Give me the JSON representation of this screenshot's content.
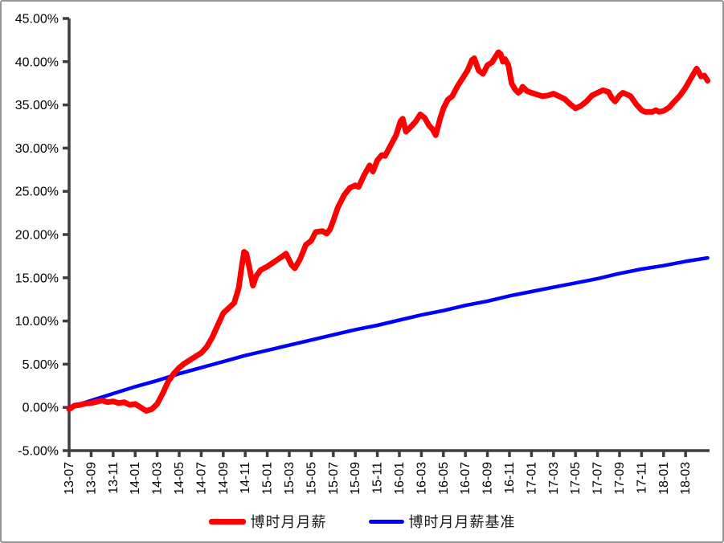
{
  "chart_data": {
    "type": "line",
    "title": "",
    "xlabel": "",
    "ylabel": "",
    "grid": false,
    "legend_position": "bottom-center",
    "x_range_months": [
      0,
      58
    ],
    "ylim": [
      -5,
      45
    ],
    "y_tick_labels": [
      "45.00%",
      "40.00%",
      "35.00%",
      "30.00%",
      "25.00%",
      "20.00%",
      "15.00%",
      "10.00%",
      "5.00%",
      "0.00%",
      "-5.00%"
    ],
    "y_tick_values": [
      45,
      40,
      35,
      30,
      25,
      20,
      15,
      10,
      5,
      0,
      -5
    ],
    "x_tick_labels": [
      "13-07",
      "13-09",
      "13-11",
      "14-01",
      "14-03",
      "14-05",
      "14-07",
      "14-09",
      "14-11",
      "15-01",
      "15-03",
      "15-05",
      "15-07",
      "15-09",
      "15-11",
      "16-01",
      "16-03",
      "16-05",
      "16-07",
      "16-09",
      "16-11",
      "17-01",
      "17-03",
      "17-05",
      "17-07",
      "17-09",
      "17-11",
      "18-01",
      "18-03"
    ],
    "x_tick_months": [
      0,
      2,
      4,
      6,
      8,
      10,
      12,
      14,
      16,
      18,
      20,
      22,
      24,
      26,
      28,
      30,
      32,
      34,
      36,
      38,
      40,
      42,
      44,
      46,
      48,
      50,
      52,
      54,
      56
    ],
    "axis_color": "#3f3f3f",
    "label_color": "#000000",
    "series": [
      {
        "name": "博时月月薪",
        "color": "#ff0000",
        "stroke_width": 7,
        "points": [
          [
            0,
            -0.2
          ],
          [
            0.5,
            0.2
          ],
          [
            1,
            0.3
          ],
          [
            1.5,
            0.45
          ],
          [
            2,
            0.5
          ],
          [
            2.5,
            0.65
          ],
          [
            3,
            0.8
          ],
          [
            3.5,
            0.6
          ],
          [
            4,
            0.7
          ],
          [
            4.5,
            0.5
          ],
          [
            5,
            0.6
          ],
          [
            5.5,
            0.3
          ],
          [
            6,
            0.4
          ],
          [
            6.5,
            0.0
          ],
          [
            7,
            -0.4
          ],
          [
            7.5,
            -0.2
          ],
          [
            8,
            0.4
          ],
          [
            8.5,
            1.6
          ],
          [
            9,
            3.0
          ],
          [
            9.5,
            3.9
          ],
          [
            10,
            4.6
          ],
          [
            10.5,
            5.1
          ],
          [
            11,
            5.5
          ],
          [
            11.5,
            5.9
          ],
          [
            12,
            6.3
          ],
          [
            12.5,
            7.0
          ],
          [
            13,
            8.1
          ],
          [
            13.5,
            9.5
          ],
          [
            14,
            10.9
          ],
          [
            14.5,
            11.5
          ],
          [
            15,
            12.1
          ],
          [
            15.4,
            13.8
          ],
          [
            15.7,
            16.5
          ],
          [
            15.9,
            18.0
          ],
          [
            16.1,
            17.8
          ],
          [
            16.4,
            16.0
          ],
          [
            16.7,
            14.1
          ],
          [
            17,
            15.2
          ],
          [
            17.4,
            15.9
          ],
          [
            18,
            16.3
          ],
          [
            18.7,
            16.9
          ],
          [
            19.4,
            17.5
          ],
          [
            19.7,
            17.8
          ],
          [
            20.2,
            16.5
          ],
          [
            20.5,
            16.1
          ],
          [
            21,
            17.2
          ],
          [
            21.5,
            18.8
          ],
          [
            22,
            19.3
          ],
          [
            22.4,
            20.3
          ],
          [
            23,
            20.4
          ],
          [
            23.4,
            20.1
          ],
          [
            23.7,
            20.6
          ],
          [
            24,
            21.6
          ],
          [
            24.4,
            23.1
          ],
          [
            25,
            24.6
          ],
          [
            25.5,
            25.4
          ],
          [
            26,
            25.7
          ],
          [
            26.3,
            25.5
          ],
          [
            26.8,
            26.9
          ],
          [
            27.3,
            28.0
          ],
          [
            27.6,
            27.3
          ],
          [
            28,
            28.6
          ],
          [
            28.4,
            29.2
          ],
          [
            28.7,
            29.1
          ],
          [
            29.2,
            30.3
          ],
          [
            29.7,
            31.5
          ],
          [
            30.1,
            33.1
          ],
          [
            30.3,
            33.4
          ],
          [
            30.6,
            31.9
          ],
          [
            31,
            32.4
          ],
          [
            31.5,
            33.1
          ],
          [
            31.9,
            33.9
          ],
          [
            32.3,
            33.5
          ],
          [
            32.7,
            32.6
          ],
          [
            33,
            32.2
          ],
          [
            33.3,
            31.5
          ],
          [
            33.7,
            33.4
          ],
          [
            34,
            34.6
          ],
          [
            34.4,
            35.6
          ],
          [
            34.8,
            36.0
          ],
          [
            35.3,
            37.2
          ],
          [
            35.8,
            38.2
          ],
          [
            36.2,
            39.0
          ],
          [
            36.6,
            40.2
          ],
          [
            36.8,
            40.4
          ],
          [
            37.2,
            39.0
          ],
          [
            37.6,
            38.6
          ],
          [
            38,
            39.6
          ],
          [
            38.4,
            39.9
          ],
          [
            38.7,
            40.5
          ],
          [
            39,
            41.1
          ],
          [
            39.2,
            40.9
          ],
          [
            39.4,
            40.0
          ],
          [
            39.6,
            40.3
          ],
          [
            39.9,
            39.6
          ],
          [
            40.2,
            37.5
          ],
          [
            40.5,
            36.8
          ],
          [
            40.8,
            36.4
          ],
          [
            41,
            36.6
          ],
          [
            41.2,
            37.1
          ],
          [
            41.6,
            36.6
          ],
          [
            42,
            36.4
          ],
          [
            42.5,
            36.2
          ],
          [
            43,
            36.0
          ],
          [
            43.5,
            36.1
          ],
          [
            44,
            36.3
          ],
          [
            44.5,
            36.0
          ],
          [
            45,
            35.7
          ],
          [
            45.5,
            35.1
          ],
          [
            46,
            34.6
          ],
          [
            46.5,
            34.9
          ],
          [
            47,
            35.4
          ],
          [
            47.5,
            36.1
          ],
          [
            48,
            36.4
          ],
          [
            48.5,
            36.7
          ],
          [
            49,
            36.5
          ],
          [
            49.3,
            35.8
          ],
          [
            49.6,
            35.4
          ],
          [
            50,
            36.1
          ],
          [
            50.3,
            36.4
          ],
          [
            50.7,
            36.2
          ],
          [
            51,
            36.0
          ],
          [
            51.5,
            35.1
          ],
          [
            52,
            34.4
          ],
          [
            52.3,
            34.2
          ],
          [
            53,
            34.2
          ],
          [
            53.3,
            34.4
          ],
          [
            53.6,
            34.2
          ],
          [
            54,
            34.3
          ],
          [
            54.5,
            34.7
          ],
          [
            55,
            35.4
          ],
          [
            55.5,
            36.1
          ],
          [
            56,
            37.0
          ],
          [
            56.5,
            38.1
          ],
          [
            57,
            39.2
          ],
          [
            57.2,
            38.8
          ],
          [
            57.4,
            38.3
          ],
          [
            57.7,
            38.4
          ],
          [
            58,
            37.8
          ]
        ]
      },
      {
        "name": "博时月月薪基准",
        "color": "#0000ff",
        "stroke_width": 4.5,
        "points": [
          [
            0,
            0.0
          ],
          [
            2,
            0.8
          ],
          [
            4,
            1.6
          ],
          [
            6,
            2.4
          ],
          [
            8,
            3.1
          ],
          [
            10,
            3.9
          ],
          [
            12,
            4.6
          ],
          [
            14,
            5.3
          ],
          [
            16,
            6.0
          ],
          [
            18,
            6.6
          ],
          [
            20,
            7.2
          ],
          [
            22,
            7.8
          ],
          [
            24,
            8.4
          ],
          [
            26,
            9.0
          ],
          [
            28,
            9.5
          ],
          [
            30,
            10.1
          ],
          [
            32,
            10.7
          ],
          [
            34,
            11.2
          ],
          [
            36,
            11.8
          ],
          [
            38,
            12.3
          ],
          [
            40,
            12.9
          ],
          [
            42,
            13.4
          ],
          [
            44,
            13.9
          ],
          [
            46,
            14.4
          ],
          [
            48,
            14.9
          ],
          [
            50,
            15.5
          ],
          [
            52,
            16.0
          ],
          [
            54,
            16.4
          ],
          [
            56,
            16.9
          ],
          [
            58,
            17.3
          ]
        ]
      }
    ]
  },
  "legend": {
    "fund_label": "博时月月薪",
    "benchmark_label": "博时月月薪基准"
  }
}
